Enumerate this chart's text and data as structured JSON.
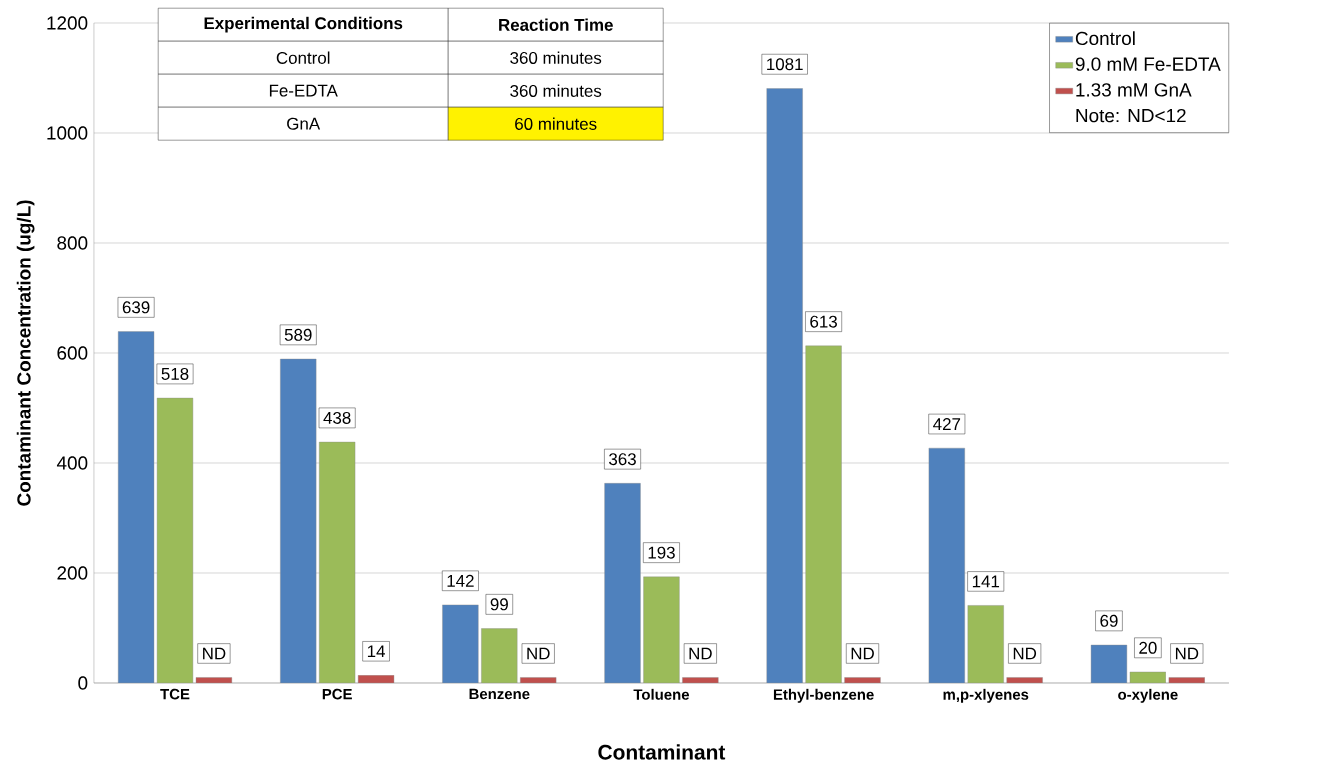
{
  "chart_data": {
    "type": "bar",
    "xlabel": "Contaminant",
    "ylabel": "Contaminant  Concentration  (ug/L)",
    "categories": [
      "TCE",
      "PCE",
      "Benzene",
      "Toluene",
      "Ethyl-benzene",
      "m,p-xlyenes",
      "o-xylene"
    ],
    "series": [
      {
        "name": "Control",
        "color": "#4f81bd",
        "values": [
          639,
          589,
          142,
          363,
          1081,
          427,
          69
        ],
        "value_labels": [
          "639",
          "589",
          "142",
          "363",
          "1081",
          "427",
          "69"
        ]
      },
      {
        "name": "9.0 mM Fe-EDTA",
        "color": "#9bbb59",
        "values": [
          518,
          438,
          99,
          193,
          613,
          141,
          20
        ],
        "value_labels": [
          "518",
          "438",
          "99",
          "193",
          "613",
          "141",
          "20"
        ]
      },
      {
        "name": "1.33 mM GnA",
        "color": "#c0504d",
        "values": [
          10,
          14,
          10,
          10,
          10,
          10,
          10
        ],
        "value_labels": [
          "ND",
          "14",
          "ND",
          "ND",
          "ND",
          "ND",
          "ND"
        ]
      }
    ],
    "ylim": [
      0,
      1200
    ],
    "yticks": [
      0,
      200,
      400,
      600,
      800,
      1000,
      1200
    ],
    "grid": "y",
    "legend": "top right",
    "annotations": [
      "Experimental Conditions",
      "Reaction Time",
      "Control",
      "360 minutes",
      "Fe-EDTA",
      "360 minutes",
      "GnA",
      "60 minutes",
      "Note: ND<12"
    ]
  }
}
